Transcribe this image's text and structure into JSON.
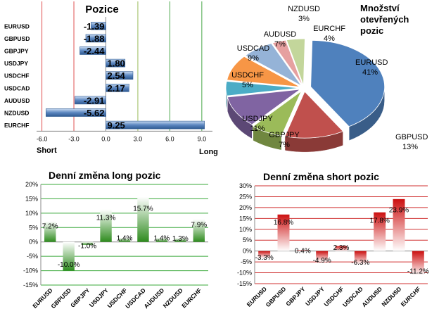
{
  "chart_data": [
    {
      "id": "positions",
      "type": "bar",
      "orientation": "horizontal",
      "title": "Pozice",
      "categories": [
        "EURUSD",
        "GBPUSD",
        "GBPJPY",
        "USDJPY",
        "USDCHF",
        "USDCAD",
        "AUDUSD",
        "NZDUSD",
        "EURCHF"
      ],
      "values": [
        -1.39,
        -1.88,
        -2.44,
        1.8,
        2.54,
        2.17,
        -2.91,
        -5.62,
        9.25
      ],
      "value_labels": [
        "-1.39",
        "-1.88",
        "-2.44",
        "1.80",
        "2.54",
        "2.17",
        "-2.91",
        "-5.62",
        "9.25"
      ],
      "xlim": [
        -6.5,
        10
      ],
      "xticks": [
        -6,
        -3,
        0,
        3,
        6,
        9
      ],
      "xtick_labels": [
        "-6.0",
        "-3.0",
        "0.0",
        "3.0",
        "6.0",
        "9.0"
      ],
      "reference_lines": [
        {
          "value": -6,
          "color": "#e05050"
        },
        {
          "value": -3,
          "color": "#e05050"
        },
        {
          "value": 3,
          "color": "#9bbb59"
        },
        {
          "value": 6,
          "color": "#4aa84a"
        },
        {
          "value": 9,
          "color": "#4aa84a"
        }
      ],
      "side_labels": {
        "left": "Short",
        "right": "Long"
      },
      "bar_color": "#4f81bd"
    },
    {
      "id": "open-positions",
      "type": "pie",
      "style": "3d",
      "title": "Množství otevřených pozic",
      "slices": [
        {
          "label": "EURUSD",
          "value": 41,
          "value_label": "41%",
          "color": "#4f81bd"
        },
        {
          "label": "GBPUSD",
          "value": 13,
          "value_label": "13%",
          "color": "#c0504d"
        },
        {
          "label": "GBPJPY",
          "value": 7,
          "value_label": "7%",
          "color": "#9bbb59"
        },
        {
          "label": "USDJPY",
          "value": 11,
          "value_label": "11%",
          "color": "#8064a2"
        },
        {
          "label": "USDCHF",
          "value": 5,
          "value_label": "5%",
          "color": "#4bacc6"
        },
        {
          "label": "USDCAD",
          "value": 9,
          "value_label": "9%",
          "color": "#f79646"
        },
        {
          "label": "AUDUSD",
          "value": 7,
          "value_label": "7%",
          "color": "#95b3d7"
        },
        {
          "label": "NZDUSD",
          "value": 3,
          "value_label": "3%",
          "color": "#e6a0a0"
        },
        {
          "label": "EURCHF",
          "value": 4,
          "value_label": "4%",
          "color": "#c3d69b"
        }
      ]
    },
    {
      "id": "daily-long",
      "type": "bar",
      "title": "Denní změna long pozic",
      "categories": [
        "EURUSD",
        "GBPUSD",
        "GBPJPY",
        "USDJPY",
        "USDCHF",
        "USDCAD",
        "AUDUSD",
        "NZDUSD",
        "EURCHF"
      ],
      "values": [
        7.2,
        -10.0,
        -1.0,
        11.3,
        1.4,
        15.7,
        1.4,
        1.3,
        7.9
      ],
      "value_labels": [
        "7.2%",
        "-10.0%",
        "-1.0%",
        "11.3%",
        "1.4%",
        "15.7%",
        "1.4%",
        "1.3%",
        "7.9%"
      ],
      "ylim": [
        -15,
        20
      ],
      "yticks": [
        -15,
        -10,
        -5,
        0,
        5,
        10,
        15,
        20
      ],
      "ytick_labels": [
        "-15%",
        "-10%",
        "-5%",
        "0%",
        "5%",
        "10%",
        "15%",
        "20%"
      ],
      "grid": true,
      "bar_color": "#2e8b1e"
    },
    {
      "id": "daily-short",
      "type": "bar",
      "title": "Denní změna short pozic",
      "categories": [
        "EURUSD",
        "GBPUSD",
        "GBPJPY",
        "USDJPY",
        "USDCHF",
        "USDCAD",
        "AUDUSD",
        "NZDUSD",
        "EURCHF"
      ],
      "values": [
        -3.3,
        16.8,
        0.4,
        -4.9,
        2.3,
        -6.3,
        17.8,
        23.9,
        -11.2
      ],
      "value_labels": [
        "-3.3%",
        "16.8%",
        "0.4%",
        "-4.9%",
        "2.3%",
        "-6.3%",
        "17.8%",
        "23.9%",
        "-11.2%"
      ],
      "ylim": [
        -15,
        30
      ],
      "yticks": [
        -15,
        -10,
        -5,
        0,
        5,
        10,
        15,
        20,
        25,
        30
      ],
      "ytick_labels": [
        "-15%",
        "-10%",
        "-5%",
        "0%",
        "5%",
        "10%",
        "15%",
        "20%",
        "25%",
        "30%"
      ],
      "grid": true,
      "bar_color": "#cc1010"
    }
  ]
}
